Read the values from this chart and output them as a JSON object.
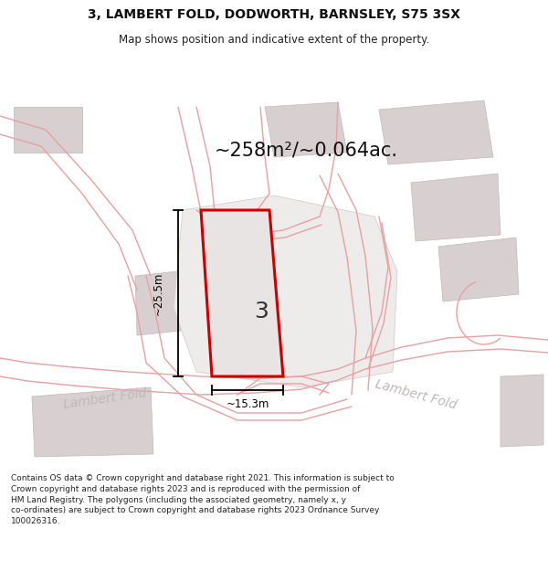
{
  "title": "3, LAMBERT FOLD, DODWORTH, BARNSLEY, S75 3SX",
  "subtitle": "Map shows position and indicative extent of the property.",
  "area_text": "~258m²/~0.064ac.",
  "dim_width": "~15.3m",
  "dim_height": "~25.5m",
  "property_number": "3",
  "footer": "Contains OS data © Crown copyright and database right 2021. This information is subject to Crown copyright and database rights 2023 and is reproduced with the permission of HM Land Registry. The polygons (including the associated geometry, namely x, y co-ordinates) are subject to Crown copyright and database rights 2023 Ordnance Survey 100026316.",
  "background_color": "#ffffff",
  "road_color": "#f5a0a0",
  "building_color": "#d8d0d0",
  "road_line_color": "#e8a0a0",
  "property_fill": "#e8e4e4",
  "property_outline": "#cc0000",
  "dim_line_color": "#000000",
  "road_label_color": "#c0b8b8",
  "figsize": [
    6.0,
    6.25
  ],
  "dpi": 100,
  "title_fontsize": 10,
  "subtitle_fontsize": 8.5,
  "footer_fontsize": 6.5,
  "area_fontsize": 15,
  "dim_fontsize": 8.5,
  "number_fontsize": 18,
  "road_label_fontsize": 10
}
